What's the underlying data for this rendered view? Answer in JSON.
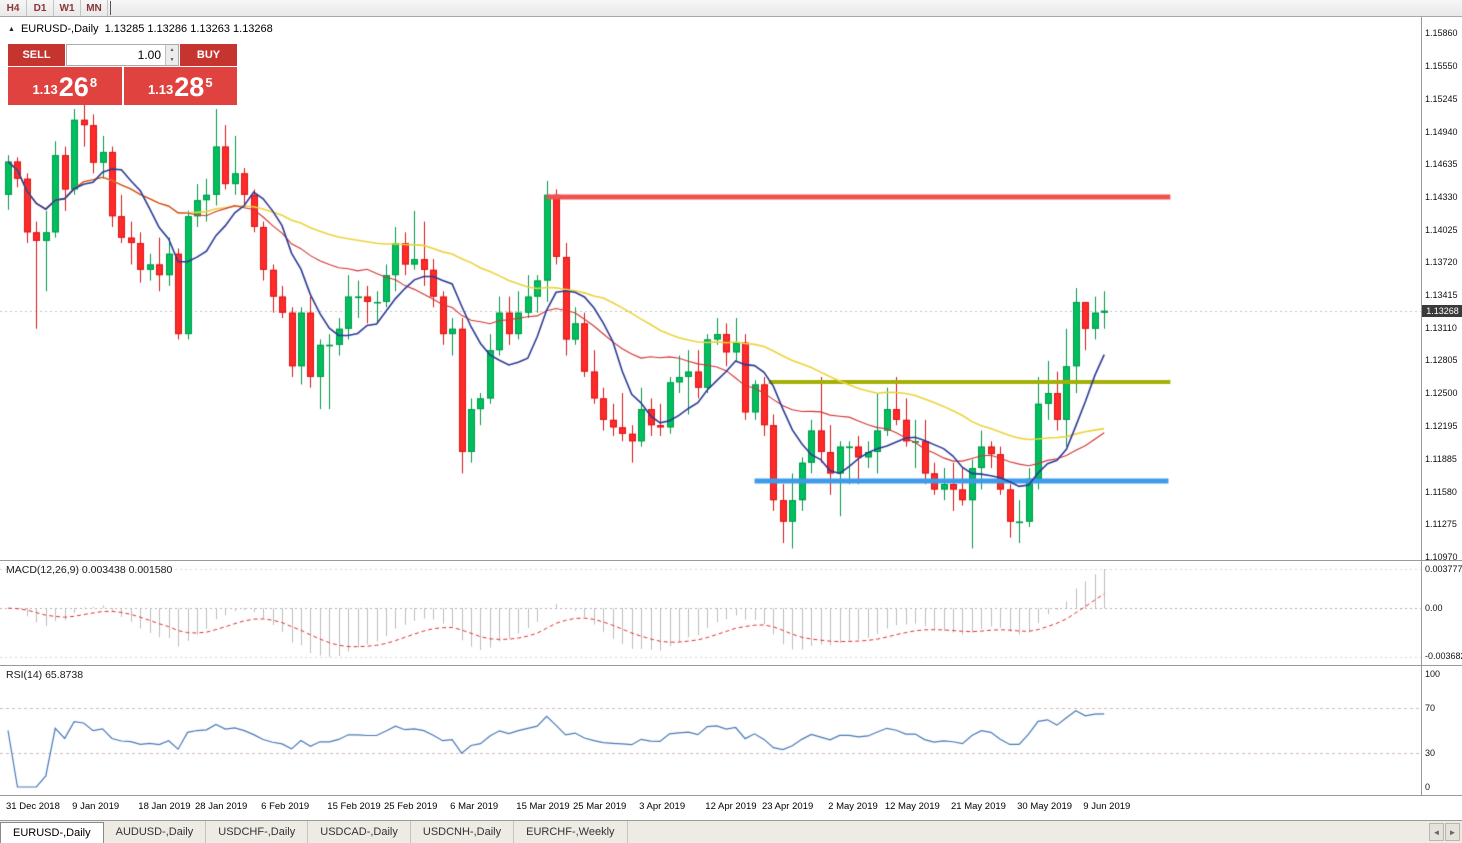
{
  "topbar": {
    "timeframes": [
      "H4",
      "D1",
      "W1",
      "MN"
    ]
  },
  "chart_header": {
    "collapse_icon": "▲",
    "title": "EURUSD-,Daily",
    "quote": "1.13285 1.13286 1.13263 1.13268"
  },
  "trade_panel": {
    "sell_label": "SELL",
    "buy_label": "BUY",
    "volume": "1.00",
    "sell_price": {
      "prefix": "1.13",
      "big": "26",
      "sup": "8"
    },
    "buy_price": {
      "prefix": "1.13",
      "big": "28",
      "sup": "5"
    }
  },
  "icons": {
    "spinner_up": "▲",
    "spinner_down": "▼",
    "tabs_left": "◄",
    "tabs_right": "►"
  },
  "price_axis": {
    "labels": [
      "1.15860",
      "1.15550",
      "1.15245",
      "1.14940",
      "1.14635",
      "1.14330",
      "1.14025",
      "1.13720",
      "1.13415",
      "1.13110",
      "1.12805",
      "1.12500",
      "1.12195",
      "1.11885",
      "1.11580",
      "1.11275",
      "1.10970"
    ],
    "current_badge": "1.13268"
  },
  "macd_panel": {
    "label": "MACD(12,26,9) 0.003438 0.001580",
    "axis_max": "0.003777",
    "axis_zero": "0.00",
    "axis_min": "-0.003682"
  },
  "rsi_panel": {
    "label": "RSI(14) 65.8738",
    "axis": [
      "100",
      "70",
      "30",
      "0"
    ],
    "levels": [
      70,
      30
    ],
    "value": 65.8738
  },
  "date_axis": {
    "labels": [
      "31 Dec 2018",
      "9 Jan 2019",
      "18 Jan 2019",
      "28 Jan 2019",
      "6 Feb 2019",
      "15 Feb 2019",
      "25 Feb 2019",
      "6 Mar 2019",
      "15 Mar 2019",
      "25 Mar 2019",
      "3 Apr 2019",
      "12 Apr 2019",
      "23 Apr 2019",
      "2 May 2019",
      "12 May 2019",
      "21 May 2019",
      "30 May 2019",
      "9 Jun 2019"
    ],
    "candle_indices": [
      0,
      7,
      14,
      20,
      27,
      34,
      40,
      47,
      54,
      60,
      67,
      74,
      80,
      87,
      93,
      100,
      107,
      114
    ]
  },
  "tabbar": {
    "tabs": [
      {
        "label": "EURUSD-,Daily",
        "active": true
      },
      {
        "label": "AUDUSD-,Daily",
        "active": false
      },
      {
        "label": "USDCHF-,Daily",
        "active": false
      },
      {
        "label": "USDCAD-,Daily",
        "active": false
      },
      {
        "label": "USDCNH-,Daily",
        "active": false
      },
      {
        "label": "EURCHF-,Weekly",
        "active": false
      }
    ]
  },
  "colors": {
    "up": "#00bf5f",
    "up_border": "#009949",
    "down": "#ff2a2a",
    "down_border": "#dd1414",
    "current_line": "#c4c4c4",
    "macd_hist": "#bdbdbd",
    "macd_signal": "#e03030",
    "rsi_line": "#4878b8",
    "rsi_level": "#d4b8b8",
    "badge_bg": "#3a3a3a"
  },
  "chart_data": {
    "type": "candlestick",
    "symbol": "EURUSD-",
    "timeframe": "Daily",
    "y_min": 1.1097,
    "y_max": 1.1586,
    "current_price": 1.13268,
    "macd_params": [
      12,
      26,
      9
    ],
    "rsi_period": 14,
    "ma": [
      {
        "period": 45,
        "color": "#ecd33e",
        "width": 1.6
      },
      {
        "period": 20,
        "color": "#d23535",
        "width": 1.1
      },
      {
        "period": 8,
        "color": "#2d3a96",
        "width": 1.6
      }
    ],
    "hlines": [
      {
        "price": 1.1433,
        "color": "#ef5350",
        "width": 5,
        "from_candle": 57,
        "to_candle": 123
      },
      {
        "price": 1.126,
        "color": "#a2b007",
        "width": 4,
        "from_candle": 80.5,
        "to_candle": 123
      },
      {
        "price": 1.1168,
        "color": "#3d9be9",
        "width": 5,
        "from_candle": 79,
        "to_candle": 122.8
      }
    ],
    "candles": [
      [
        1.1435,
        1.1472,
        1.1421,
        1.1466
      ],
      [
        1.1466,
        1.147,
        1.1442,
        1.145
      ],
      [
        1.145,
        1.1455,
        1.139,
        1.14
      ],
      [
        1.14,
        1.141,
        1.131,
        1.1392
      ],
      [
        1.1392,
        1.142,
        1.1345,
        1.14
      ],
      [
        1.14,
        1.1485,
        1.1395,
        1.1472
      ],
      [
        1.1472,
        1.148,
        1.142,
        1.144
      ],
      [
        1.144,
        1.1515,
        1.1435,
        1.1505
      ],
      [
        1.1505,
        1.1522,
        1.148,
        1.15
      ],
      [
        1.15,
        1.151,
        1.1455,
        1.1465
      ],
      [
        1.1465,
        1.149,
        1.145,
        1.1475
      ],
      [
        1.1475,
        1.148,
        1.1405,
        1.1415
      ],
      [
        1.1415,
        1.1435,
        1.139,
        1.1395
      ],
      [
        1.1395,
        1.141,
        1.137,
        1.139
      ],
      [
        1.139,
        1.14,
        1.1353,
        1.1365
      ],
      [
        1.1365,
        1.138,
        1.1355,
        1.137
      ],
      [
        1.137,
        1.1395,
        1.1345,
        1.136
      ],
      [
        1.136,
        1.1395,
        1.135,
        1.138
      ],
      [
        1.138,
        1.1385,
        1.13,
        1.1305
      ],
      [
        1.1305,
        1.142,
        1.13,
        1.1415
      ],
      [
        1.1415,
        1.1445,
        1.1405,
        1.143
      ],
      [
        1.143,
        1.145,
        1.141,
        1.1435
      ],
      [
        1.1435,
        1.1515,
        1.1425,
        1.148
      ],
      [
        1.148,
        1.15,
        1.144,
        1.1445
      ],
      [
        1.1445,
        1.149,
        1.1435,
        1.1455
      ],
      [
        1.1455,
        1.146,
        1.1425,
        1.1435
      ],
      [
        1.1435,
        1.144,
        1.14,
        1.1405
      ],
      [
        1.1405,
        1.141,
        1.1355,
        1.1365
      ],
      [
        1.1365,
        1.137,
        1.1325,
        1.134
      ],
      [
        1.134,
        1.135,
        1.132,
        1.1325
      ],
      [
        1.1325,
        1.133,
        1.1265,
        1.1275
      ],
      [
        1.1275,
        1.133,
        1.1258,
        1.1325
      ],
      [
        1.1325,
        1.134,
        1.1255,
        1.1265
      ],
      [
        1.1265,
        1.13,
        1.1235,
        1.1295
      ],
      [
        1.1295,
        1.1305,
        1.1235,
        1.1295
      ],
      [
        1.1295,
        1.132,
        1.1285,
        1.131
      ],
      [
        1.131,
        1.136,
        1.13,
        1.134
      ],
      [
        1.134,
        1.1355,
        1.132,
        1.134
      ],
      [
        1.134,
        1.135,
        1.1315,
        1.1335
      ],
      [
        1.1335,
        1.1345,
        1.1315,
        1.1335
      ],
      [
        1.1335,
        1.137,
        1.133,
        1.136
      ],
      [
        1.136,
        1.1405,
        1.1345,
        1.139
      ],
      [
        1.139,
        1.14,
        1.136,
        1.137
      ],
      [
        1.137,
        1.142,
        1.1365,
        1.1375
      ],
      [
        1.1375,
        1.141,
        1.135,
        1.1365
      ],
      [
        1.1365,
        1.1375,
        1.133,
        1.134
      ],
      [
        1.134,
        1.1345,
        1.1295,
        1.1305
      ],
      [
        1.1305,
        1.132,
        1.1285,
        1.131
      ],
      [
        1.131,
        1.132,
        1.1175,
        1.1195
      ],
      [
        1.1195,
        1.1245,
        1.1185,
        1.1235
      ],
      [
        1.1235,
        1.125,
        1.122,
        1.1245
      ],
      [
        1.1245,
        1.1305,
        1.124,
        1.129
      ],
      [
        1.129,
        1.134,
        1.1285,
        1.1325
      ],
      [
        1.1325,
        1.134,
        1.1295,
        1.1305
      ],
      [
        1.1305,
        1.1345,
        1.13,
        1.1325
      ],
      [
        1.1325,
        1.136,
        1.132,
        1.134
      ],
      [
        1.134,
        1.136,
        1.1325,
        1.1355
      ],
      [
        1.1355,
        1.1448,
        1.1335,
        1.1435
      ],
      [
        1.1435,
        1.144,
        1.137,
        1.1377
      ],
      [
        1.1377,
        1.139,
        1.1285,
        1.13
      ],
      [
        1.13,
        1.133,
        1.1295,
        1.1315
      ],
      [
        1.1315,
        1.1325,
        1.1265,
        1.127
      ],
      [
        1.127,
        1.129,
        1.124,
        1.1245
      ],
      [
        1.1245,
        1.1255,
        1.1215,
        1.1225
      ],
      [
        1.1225,
        1.124,
        1.121,
        1.1218
      ],
      [
        1.1218,
        1.125,
        1.1205,
        1.1212
      ],
      [
        1.1212,
        1.122,
        1.1185,
        1.1205
      ],
      [
        1.1205,
        1.1255,
        1.12,
        1.1235
      ],
      [
        1.1235,
        1.1245,
        1.121,
        1.122
      ],
      [
        1.122,
        1.124,
        1.121,
        1.1218
      ],
      [
        1.1218,
        1.1265,
        1.1212,
        1.126
      ],
      [
        1.126,
        1.1285,
        1.125,
        1.1265
      ],
      [
        1.1265,
        1.129,
        1.123,
        1.127
      ],
      [
        1.127,
        1.129,
        1.1245,
        1.1255
      ],
      [
        1.1255,
        1.1305,
        1.125,
        1.13
      ],
      [
        1.13,
        1.132,
        1.1295,
        1.1305
      ],
      [
        1.1305,
        1.1315,
        1.1275,
        1.1288
      ],
      [
        1.1288,
        1.132,
        1.128,
        1.1297
      ],
      [
        1.1297,
        1.1305,
        1.1225,
        1.1232
      ],
      [
        1.1232,
        1.1262,
        1.1225,
        1.1258
      ],
      [
        1.1258,
        1.1265,
        1.121,
        1.122
      ],
      [
        1.122,
        1.123,
        1.114,
        1.115
      ],
      [
        1.115,
        1.1165,
        1.111,
        1.113
      ],
      [
        1.113,
        1.1175,
        1.1105,
        1.115
      ],
      [
        1.115,
        1.119,
        1.114,
        1.1185
      ],
      [
        1.1185,
        1.1225,
        1.1175,
        1.1215
      ],
      [
        1.1215,
        1.1265,
        1.1185,
        1.1195
      ],
      [
        1.1195,
        1.122,
        1.1155,
        1.1175
      ],
      [
        1.1175,
        1.1205,
        1.1135,
        1.12
      ],
      [
        1.12,
        1.1205,
        1.1165,
        1.12
      ],
      [
        1.12,
        1.121,
        1.1165,
        1.119
      ],
      [
        1.119,
        1.1205,
        1.118,
        1.1195
      ],
      [
        1.1195,
        1.125,
        1.1175,
        1.1215
      ],
      [
        1.1215,
        1.1255,
        1.121,
        1.1235
      ],
      [
        1.1235,
        1.1265,
        1.122,
        1.1225
      ],
      [
        1.1225,
        1.1245,
        1.12,
        1.1205
      ],
      [
        1.1205,
        1.1225,
        1.118,
        1.1205
      ],
      [
        1.1205,
        1.1225,
        1.1165,
        1.1175
      ],
      [
        1.1175,
        1.1185,
        1.1155,
        1.116
      ],
      [
        1.116,
        1.118,
        1.115,
        1.1165
      ],
      [
        1.1165,
        1.1185,
        1.114,
        1.116
      ],
      [
        1.116,
        1.118,
        1.1145,
        1.115
      ],
      [
        1.115,
        1.1188,
        1.1105,
        1.118
      ],
      [
        1.118,
        1.1215,
        1.116,
        1.12
      ],
      [
        1.12,
        1.1205,
        1.118,
        1.1193
      ],
      [
        1.1193,
        1.12,
        1.1155,
        1.116
      ],
      [
        1.116,
        1.1165,
        1.1115,
        1.113
      ],
      [
        1.113,
        1.115,
        1.111,
        1.113
      ],
      [
        1.113,
        1.118,
        1.1125,
        1.117
      ],
      [
        1.117,
        1.1265,
        1.116,
        1.124
      ],
      [
        1.124,
        1.128,
        1.1225,
        1.125
      ],
      [
        1.125,
        1.127,
        1.1215,
        1.1225
      ],
      [
        1.1225,
        1.131,
        1.12,
        1.1275
      ],
      [
        1.1275,
        1.1348,
        1.125,
        1.1335
      ],
      [
        1.1335,
        1.1335,
        1.129,
        1.131
      ],
      [
        1.131,
        1.134,
        1.13,
        1.1325
      ],
      [
        1.1325,
        1.1345,
        1.131,
        1.13268
      ]
    ]
  }
}
